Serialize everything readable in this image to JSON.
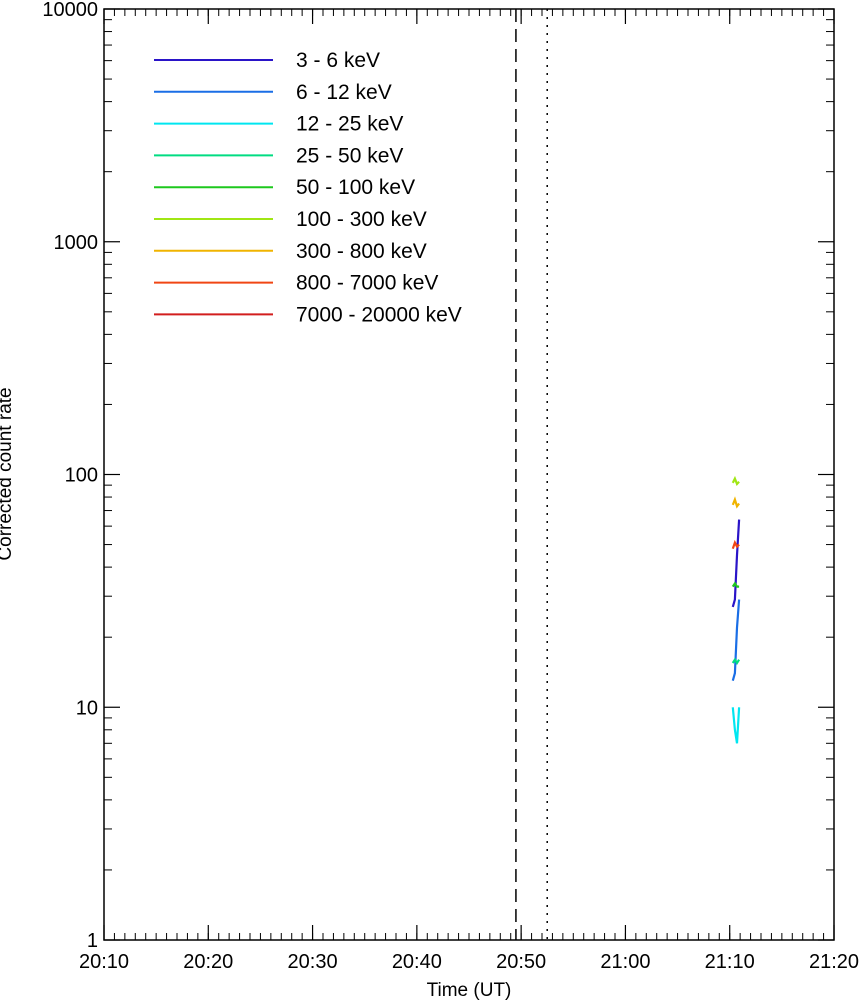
{
  "chart_data": {
    "type": "line",
    "title": "",
    "xlabel": "Time (UT)",
    "ylabel": "Corrected count rate",
    "y_scale": "log",
    "ylim": [
      1,
      10000
    ],
    "xlim": [
      "20:10",
      "21:20"
    ],
    "x_tick_labels": [
      "20:10",
      "20:20",
      "20:30",
      "20:40",
      "20:50",
      "21:00",
      "21:10",
      "21:20"
    ],
    "y_tick_labels": [
      "1",
      "10",
      "100",
      "1000",
      "10000"
    ],
    "legend_position": "top-left",
    "vertical_markers": [
      {
        "style": "dashed",
        "time": "20:49:30"
      },
      {
        "style": "dotted",
        "time": "20:52:30"
      }
    ],
    "series": [
      {
        "name": "3 - 6 keV",
        "color": "#2a14c8",
        "points": [
          [
            "21:10:18",
            27
          ],
          [
            "21:10:30",
            29
          ],
          [
            "21:10:42",
            45
          ],
          [
            "21:10:54",
            64
          ]
        ]
      },
      {
        "name": "6 - 12 keV",
        "color": "#1a6ee6",
        "points": [
          [
            "21:10:18",
            13
          ],
          [
            "21:10:30",
            14
          ],
          [
            "21:10:42",
            22
          ],
          [
            "21:10:54",
            29
          ]
        ]
      },
      {
        "name": "12 - 25 keV",
        "color": "#00e6f0",
        "points": [
          [
            "21:10:18",
            10
          ],
          [
            "21:10:30",
            8
          ],
          [
            "21:10:42",
            7
          ],
          [
            "21:10:54",
            10
          ]
        ]
      },
      {
        "name": "25 - 50 keV",
        "color": "#00dc82",
        "points": [
          [
            "21:10:18",
            15.5
          ],
          [
            "21:10:30",
            16
          ],
          [
            "21:10:42",
            15.5
          ],
          [
            "21:10:54",
            16
          ]
        ]
      },
      {
        "name": "50 - 100 keV",
        "color": "#1ec81e",
        "points": [
          [
            "21:10:18",
            33
          ],
          [
            "21:10:30",
            34
          ],
          [
            "21:10:42",
            33
          ],
          [
            "21:10:54",
            33
          ]
        ]
      },
      {
        "name": "100 - 300 keV",
        "color": "#a0e614",
        "points": [
          [
            "21:10:18",
            92
          ],
          [
            "21:10:30",
            96
          ],
          [
            "21:10:42",
            91
          ],
          [
            "21:10:54",
            93
          ]
        ]
      },
      {
        "name": "300 - 800 keV",
        "color": "#f0b400",
        "points": [
          [
            "21:10:18",
            74
          ],
          [
            "21:10:30",
            78
          ],
          [
            "21:10:42",
            73
          ],
          [
            "21:10:54",
            75
          ]
        ]
      },
      {
        "name": "800 - 7000 keV",
        "color": "#f04614",
        "points": [
          [
            "21:10:18",
            48
          ],
          [
            "21:10:30",
            51
          ],
          [
            "21:10:42",
            49
          ],
          [
            "21:10:54",
            50
          ]
        ]
      },
      {
        "name": "7000 - 20000 keV",
        "color": "#d21e1e",
        "points": []
      }
    ]
  }
}
